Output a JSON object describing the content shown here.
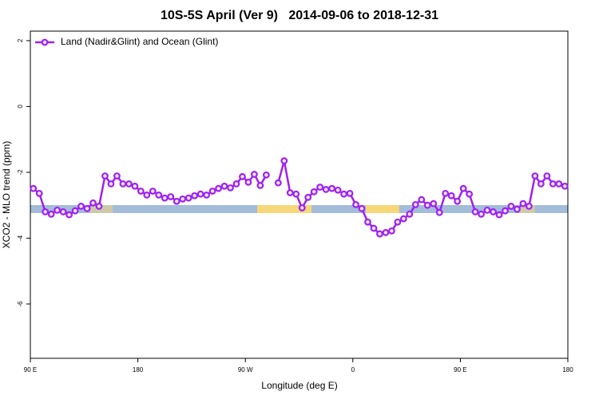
{
  "chart_data": {
    "type": "line",
    "title": "10S-5S April (Ver 9)   2014-09-06 to 2018-12-31",
    "x_label": "Longitude (deg E)",
    "y_label": "XCO2 - MLO trend (ppm)",
    "xlim": [
      90,
      540
    ],
    "ylim": [
      -7.65,
      2.29
    ],
    "xticks": [
      {
        "value": 90,
        "label": "90 E"
      },
      180,
      {
        "value": 270,
        "label": "90 W"
      },
      {
        "value": 360,
        "label": "0"
      },
      {
        "value": 450,
        "label": "90 E"
      },
      {
        "value": 540,
        "label": "180"
      }
    ],
    "yticks": [
      -6,
      -4,
      -2,
      0,
      2
    ],
    "legend": "top-left",
    "grid": false,
    "x": [
      92.5,
      97.5,
      102.5,
      107.5,
      112.5,
      117.5,
      122.5,
      127.5,
      132.5,
      137.5,
      142.5,
      147.5,
      152.5,
      157.5,
      162.5,
      167.5,
      172.5,
      177.5,
      182.5,
      187.5,
      192.5,
      197.5,
      202.5,
      207.5,
      212.5,
      217.5,
      222.5,
      227.5,
      232.5,
      237.5,
      242.5,
      247.5,
      252.5,
      257.5,
      262.5,
      267.5,
      272.5,
      277.5,
      282.5,
      287.5,
      292.5,
      297.5,
      302.5,
      307.5,
      312.5,
      317.5,
      322.5,
      327.5,
      332.5,
      337.5,
      342.5,
      347.5,
      352.5,
      357.5,
      362.5,
      367.5,
      372.5,
      377.5,
      382.5,
      387.5,
      392.5,
      397.5,
      402.5,
      407.5,
      412.5,
      417.5,
      422.5,
      427.5,
      432.5,
      437.5,
      442.5,
      447.5,
      452.5,
      457.5,
      462.5,
      467.5,
      472.5,
      477.5,
      482.5,
      487.5,
      492.5,
      497.5,
      502.5,
      507.5,
      512.5,
      517.5,
      522.5,
      527.5,
      532.5,
      537.5
    ],
    "series": [
      {
        "name": "Land (Nadir&Glint) and Ocean (Glint)",
        "color": "#a020f0",
        "values": [
          -2.49,
          -2.64,
          -3.2,
          -3.27,
          -3.15,
          -3.2,
          -3.29,
          -3.17,
          -3.03,
          -3.1,
          -2.93,
          -3.03,
          -2.11,
          -2.35,
          -2.11,
          -2.35,
          -2.35,
          -2.42,
          -2.57,
          -2.69,
          -2.57,
          -2.69,
          -2.78,
          -2.74,
          -2.88,
          -2.81,
          -2.78,
          -2.71,
          -2.66,
          -2.69,
          -2.57,
          -2.49,
          -2.42,
          -2.47,
          -2.35,
          -2.13,
          -2.3,
          -2.06,
          -2.4,
          -2.08,
          null,
          -2.32,
          -1.65,
          -2.62,
          -2.66,
          -3.08,
          -2.76,
          -2.59,
          -2.45,
          -2.52,
          -2.49,
          -2.54,
          -2.66,
          -2.64,
          -2.98,
          -3.1,
          -3.51,
          -3.7,
          -3.87,
          -3.83,
          -3.78,
          -3.51,
          -3.41,
          -3.27,
          -2.98,
          -2.83,
          -3.0,
          -2.95,
          -3.22,
          -2.64,
          -2.71,
          -2.88,
          -2.49,
          -2.66,
          -3.2,
          -3.27,
          -3.15,
          -3.2,
          -3.29,
          -3.17,
          -3.03,
          -3.12,
          -2.95,
          -3.03,
          -2.11,
          -2.35,
          -2.11,
          -2.35,
          -2.35,
          -2.42
        ]
      }
    ]
  }
}
